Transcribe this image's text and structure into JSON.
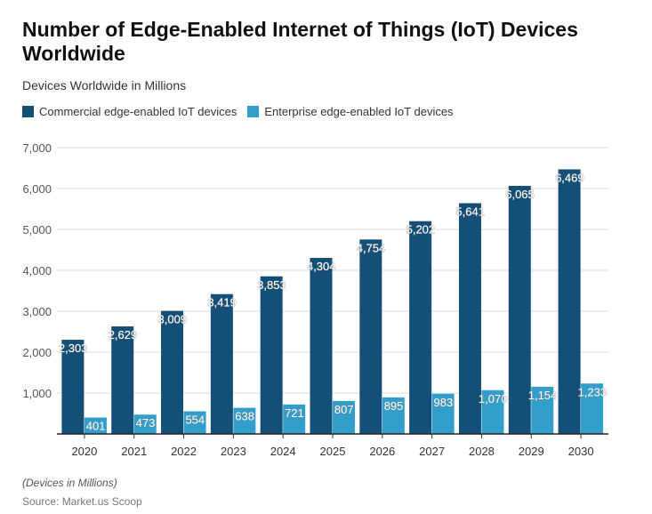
{
  "chart_data": {
    "type": "bar",
    "title": "Number of Edge-Enabled Internet of Things (IoT) Devices Worldwide",
    "subtitle": "Devices Worldwide in Millions",
    "categories": [
      "2020",
      "2021",
      "2022",
      "2023",
      "2024",
      "2025",
      "2026",
      "2027",
      "2028",
      "2029",
      "2030"
    ],
    "series": [
      {
        "name": "Commercial edge-enabled IoT devices",
        "color": "#134f77",
        "values": [
          2303,
          2629,
          3009,
          3419,
          3853,
          4304,
          4754,
          5202,
          5641,
          6065,
          6469
        ]
      },
      {
        "name": "Enterprise edge-enabled IoT devices",
        "color": "#319ecb",
        "values": [
          401,
          473,
          554,
          638,
          721,
          807,
          895,
          983,
          1070,
          1154,
          1233
        ]
      }
    ],
    "ylim": [
      0,
      7000
    ],
    "yticks": [
      1000,
      2000,
      3000,
      4000,
      5000,
      6000,
      7000
    ],
    "grid": true,
    "legend": "top-left",
    "note": "(Devices in Millions)",
    "source": "Source: Market.us Scoop"
  }
}
